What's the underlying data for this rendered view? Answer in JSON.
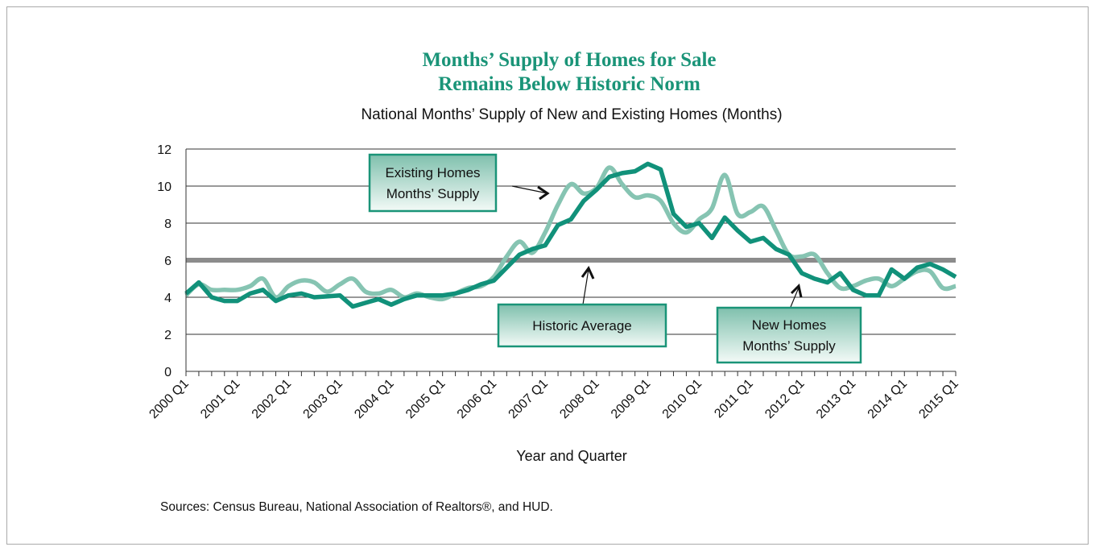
{
  "chart_data": {
    "type": "line",
    "title": [
      "Months’ Supply of Homes for Sale",
      "Remains Below Historic Norm"
    ],
    "subtitle": "National Months’ Supply of New and Existing Homes (Months)",
    "xlabel": "Year and Quarter",
    "ylabel": "",
    "ylim": [
      0,
      12
    ],
    "yticks": [
      0,
      2,
      4,
      6,
      8,
      10,
      12
    ],
    "grid": true,
    "xtick_labels": [
      "2000 Q1",
      "2001 Q1",
      "2002 Q1",
      "2003 Q1",
      "2004 Q1",
      "2005 Q1",
      "2006 Q1",
      "2007 Q1",
      "2008 Q1",
      "2009 Q1",
      "2010 Q1",
      "2011 Q1",
      "2012 Q1",
      "2013 Q1",
      "2014 Q1",
      "2015 Q1"
    ],
    "x_start": "2000 Q1",
    "x_end": "2015 Q1",
    "series": [
      {
        "name": "New Homes Months’ Supply",
        "color": "#11917a",
        "values": [
          4.2,
          4.8,
          4.0,
          3.8,
          3.8,
          4.2,
          4.4,
          3.8,
          4.1,
          4.2,
          4.0,
          4.05,
          4.1,
          3.5,
          3.7,
          3.9,
          3.6,
          3.9,
          4.1,
          4.1,
          4.1,
          4.2,
          4.4,
          4.7,
          4.9,
          5.6,
          6.3,
          6.6,
          6.8,
          7.9,
          8.2,
          9.2,
          9.8,
          10.5,
          10.7,
          10.8,
          11.2,
          10.9,
          8.5,
          7.8,
          8.0,
          7.2,
          8.3,
          7.6,
          7.0,
          7.2,
          6.6,
          6.3,
          5.3,
          5.0,
          4.8,
          5.3,
          4.4,
          4.1,
          4.1,
          5.5,
          5.0,
          5.6,
          5.8,
          5.5,
          5.1
        ]
      },
      {
        "name": "Existing Homes Months’ Supply",
        "color": "#86c4b2",
        "values": [
          4.1,
          4.7,
          4.4,
          4.4,
          4.4,
          4.6,
          5.0,
          4.0,
          4.6,
          4.9,
          4.8,
          4.3,
          4.7,
          5.0,
          4.3,
          4.2,
          4.4,
          4.0,
          4.2,
          4.0,
          3.9,
          4.2,
          4.5,
          4.6,
          5.1,
          6.2,
          7.0,
          6.4,
          7.5,
          9.0,
          10.1,
          9.6,
          9.9,
          11.0,
          10.1,
          9.4,
          9.5,
          9.2,
          8.0,
          7.5,
          8.2,
          8.8,
          10.6,
          8.5,
          8.6,
          8.9,
          7.6,
          6.3,
          6.2,
          6.3,
          5.3,
          4.5,
          4.6,
          4.9,
          5.0,
          4.6,
          5.0,
          5.4,
          5.4,
          4.5,
          4.6
        ]
      },
      {
        "name": "Historic Average",
        "color": "#8c8c8c",
        "values": [
          6.0
        ]
      }
    ],
    "annotations": [
      {
        "text": [
          "Existing Homes",
          "Months’ Supply"
        ]
      },
      {
        "text": [
          "Historic Average"
        ]
      },
      {
        "text": [
          "New Homes",
          "Months’ Supply"
        ]
      }
    ],
    "source": "Sources: Census Bureau, National Association of Realtors®, and HUD."
  }
}
